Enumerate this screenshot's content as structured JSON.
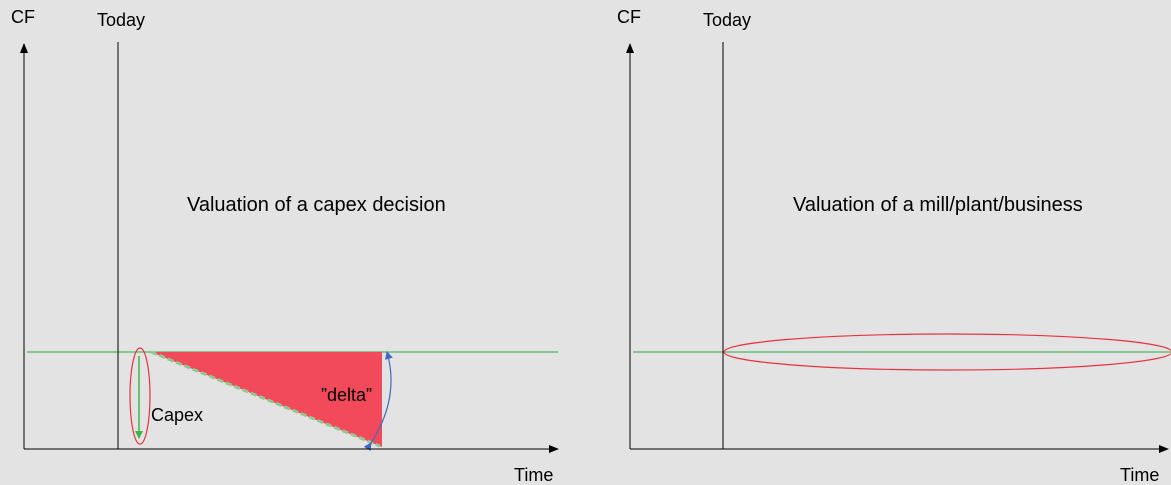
{
  "left_panel": {
    "y_axis_label": "CF",
    "today_label": "Today",
    "title": "Valuation of a capex decision",
    "capex_label": "Capex",
    "delta_label": "”delta”",
    "x_axis_label": "Time"
  },
  "right_panel": {
    "y_axis_label": "CF",
    "today_label": "Today",
    "title": "Valuation of a mill/plant/business",
    "x_axis_label": "Time"
  },
  "colors": {
    "baseline": "#2ea84a",
    "delta_fill": "#f24a5b",
    "highlight_ellipse": "#e8333f",
    "capex_arrow": "#3cb64d",
    "delta_arrow": "#3f68c2",
    "axis": "#000000"
  }
}
